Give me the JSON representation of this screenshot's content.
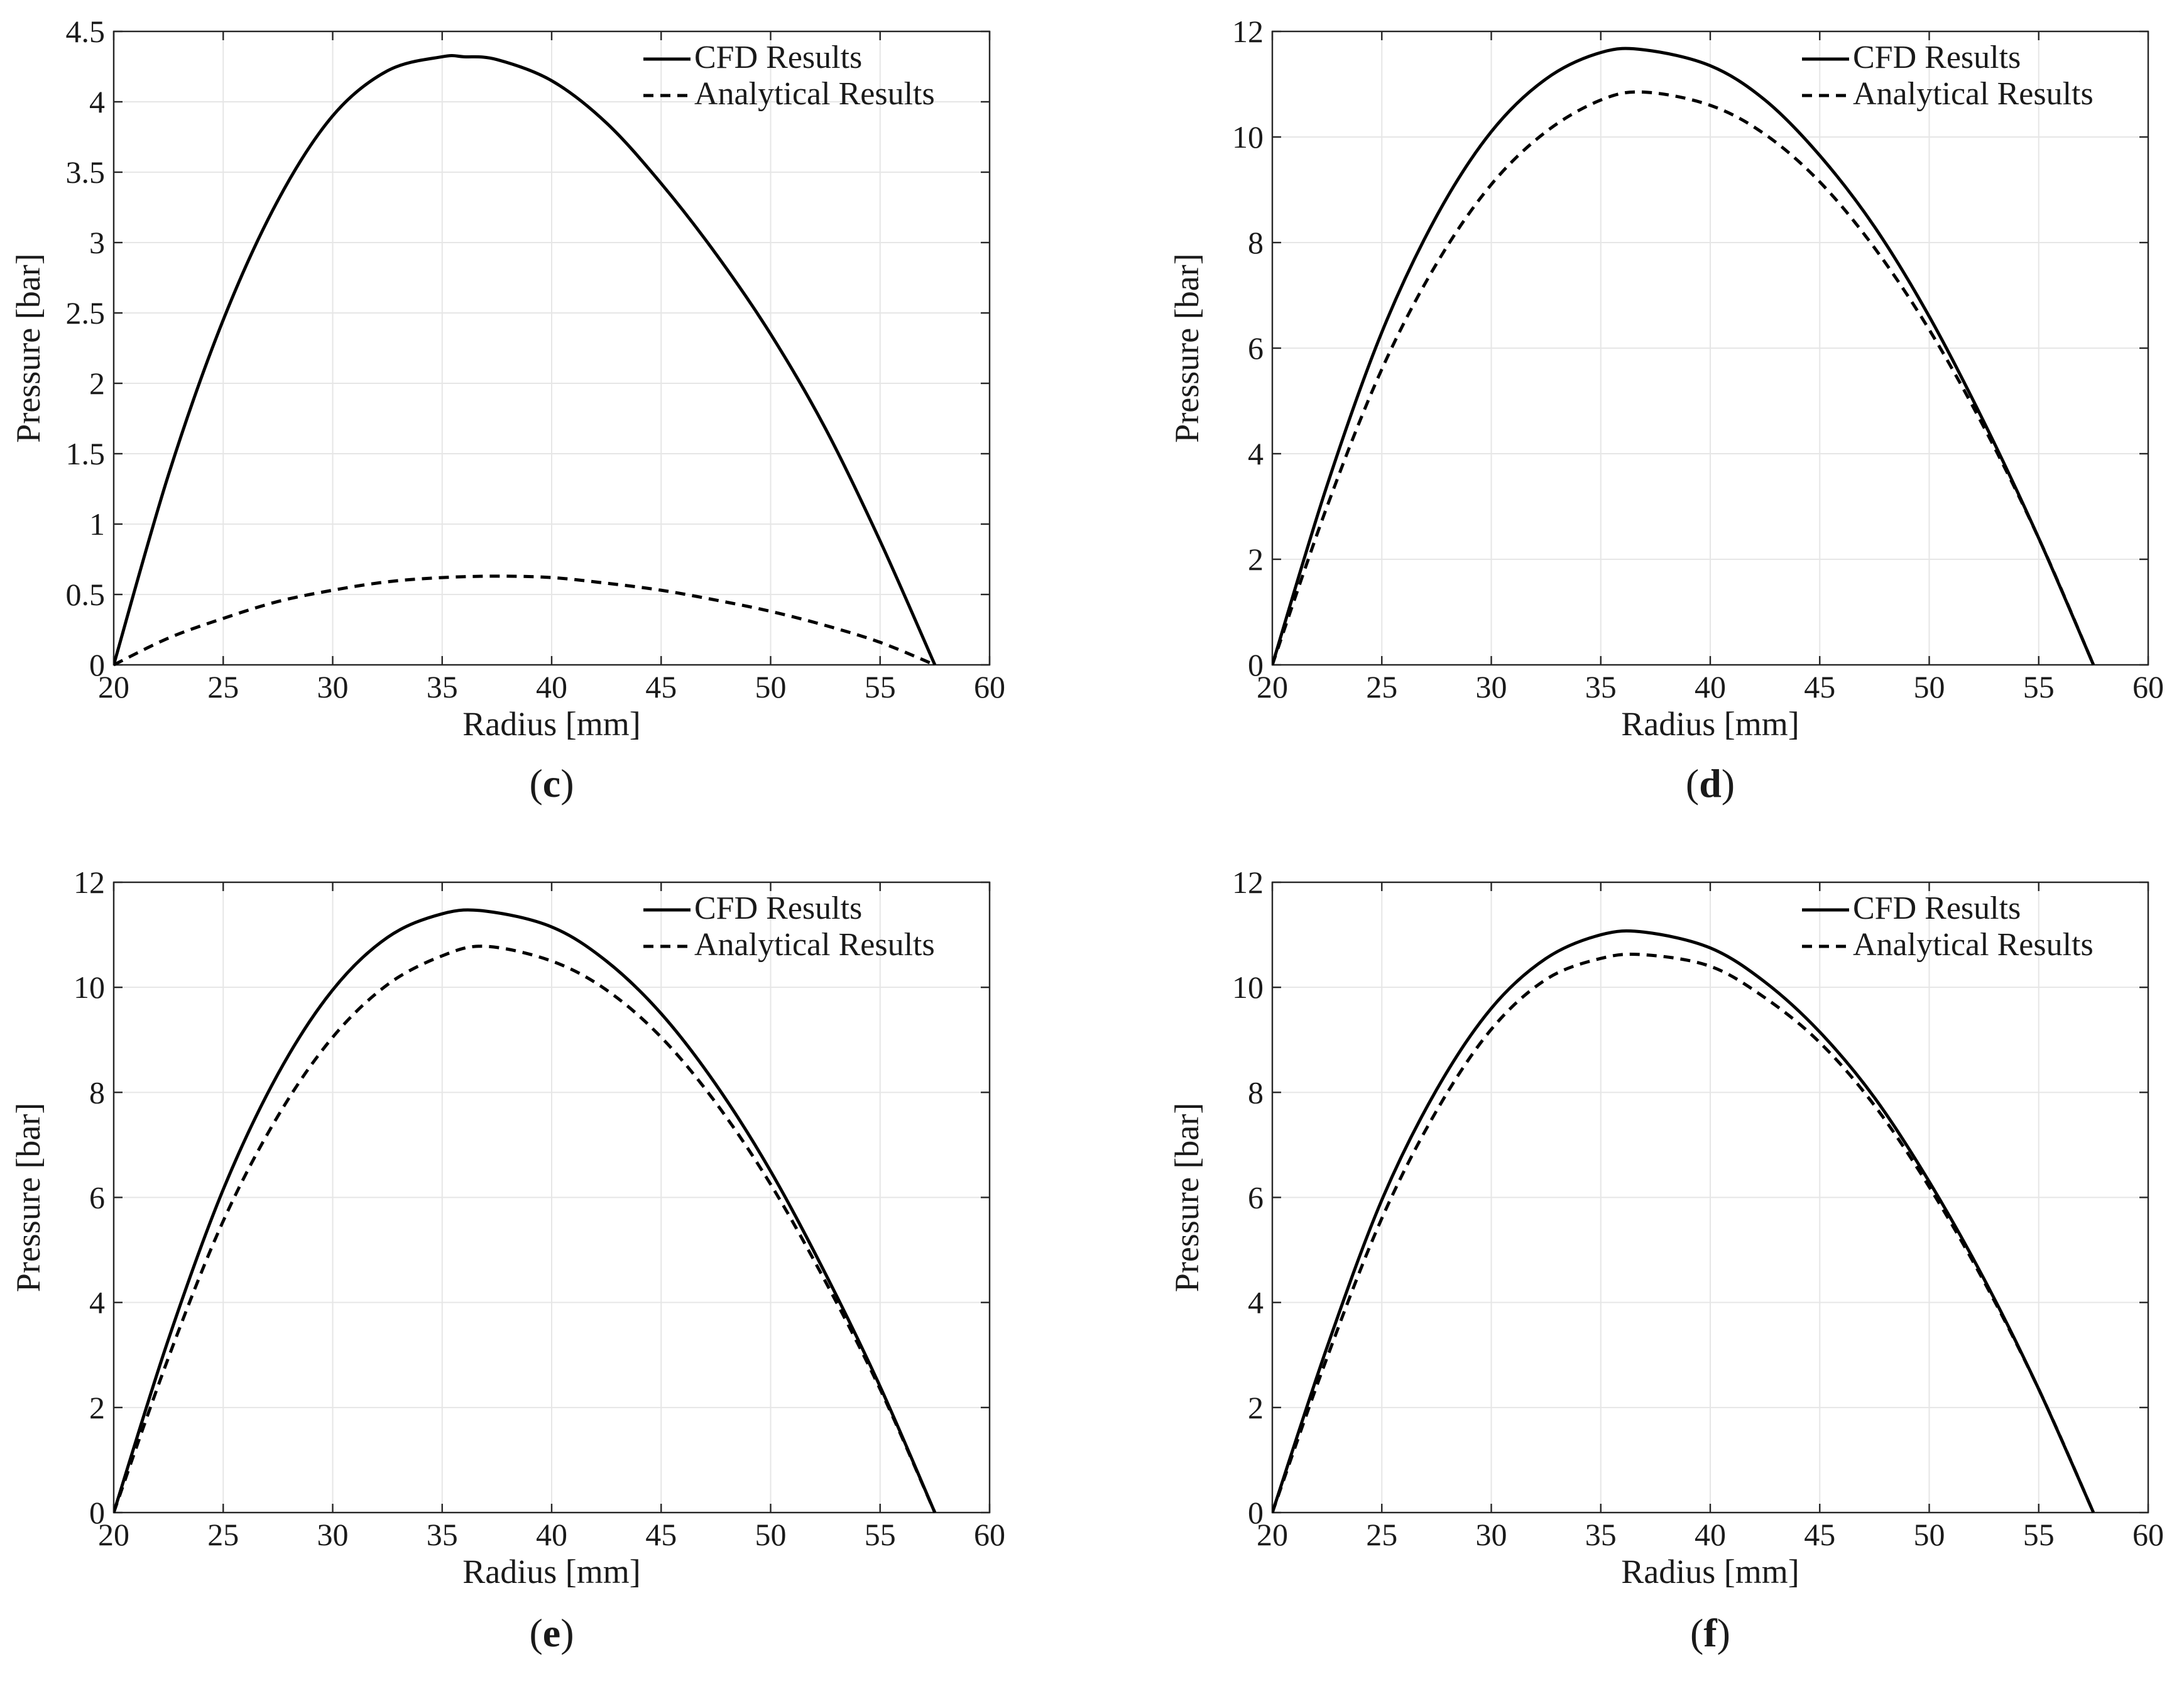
{
  "figure": {
    "panels": [
      "c",
      "d",
      "e",
      "f"
    ]
  },
  "chart_data": [
    {
      "id": "c",
      "type": "line",
      "caption_letter": "c",
      "xlabel": "Radius [mm]",
      "ylabel": "Pressure [bar]",
      "xlim": [
        20,
        60
      ],
      "ylim": [
        0,
        4.5
      ],
      "xticks": [
        20,
        25,
        30,
        35,
        40,
        45,
        50,
        55,
        60
      ],
      "yticks": [
        0,
        0.5,
        1,
        1.5,
        2,
        2.5,
        3,
        3.5,
        4,
        4.5
      ],
      "ytick_labels": [
        "0",
        "0.5",
        "1",
        "1.5",
        "2",
        "2.5",
        "3",
        "3.5",
        "4",
        "4.5"
      ],
      "grid": true,
      "legend": "top-right",
      "series": [
        {
          "name": "CFD Results",
          "style": "solid",
          "x": [
            20,
            22.5,
            25,
            27.5,
            30,
            32.5,
            35,
            36,
            37.5,
            40,
            42.5,
            45,
            47.5,
            50,
            52.5,
            55,
            57.5
          ],
          "y": [
            0,
            1.35,
            2.45,
            3.3,
            3.9,
            4.22,
            4.32,
            4.32,
            4.3,
            4.15,
            3.85,
            3.42,
            2.92,
            2.35,
            1.68,
            0.88,
            0
          ]
        },
        {
          "name": "Analytical Results",
          "style": "dashed",
          "x": [
            20,
            22.5,
            25,
            27.5,
            30,
            32.5,
            35,
            37.5,
            40,
            42.5,
            45,
            47.5,
            50,
            52.5,
            55,
            57.5
          ],
          "y": [
            0,
            0.19,
            0.33,
            0.45,
            0.53,
            0.59,
            0.62,
            0.63,
            0.62,
            0.58,
            0.53,
            0.46,
            0.38,
            0.28,
            0.16,
            0
          ]
        }
      ]
    },
    {
      "id": "d",
      "type": "line",
      "caption_letter": "d",
      "xlabel": "Radius [mm]",
      "ylabel": "Pressure [bar]",
      "xlim": [
        20,
        60
      ],
      "ylim": [
        0,
        12
      ],
      "xticks": [
        20,
        25,
        30,
        35,
        40,
        45,
        50,
        55,
        60
      ],
      "yticks": [
        0,
        2,
        4,
        6,
        8,
        10,
        12
      ],
      "ytick_labels": [
        "0",
        "2",
        "4",
        "6",
        "8",
        "10",
        "12"
      ],
      "grid": true,
      "legend": "top-right",
      "series": [
        {
          "name": "CFD Results",
          "style": "solid",
          "x": [
            20,
            22.5,
            25,
            27.5,
            30,
            32.5,
            35,
            37,
            40,
            42.5,
            45,
            47.5,
            50,
            52.5,
            55,
            57.5
          ],
          "y": [
            0,
            3.4,
            6.3,
            8.5,
            10.1,
            11.1,
            11.6,
            11.65,
            11.35,
            10.7,
            9.65,
            8.3,
            6.6,
            4.6,
            2.4,
            0
          ]
        },
        {
          "name": "Analytical Results",
          "style": "dashed",
          "x": [
            20,
            22.5,
            25,
            27.5,
            30,
            32.5,
            35,
            37,
            40,
            42.5,
            45,
            47.5,
            50,
            52.5,
            55,
            57.5
          ],
          "y": [
            0,
            3.0,
            5.6,
            7.6,
            9.1,
            10.1,
            10.7,
            10.85,
            10.6,
            10.05,
            9.15,
            7.9,
            6.35,
            4.5,
            2.4,
            0
          ]
        }
      ]
    },
    {
      "id": "e",
      "type": "line",
      "caption_letter": "e",
      "xlabel": "Radius [mm]",
      "ylabel": "Pressure [bar]",
      "xlim": [
        20,
        60
      ],
      "ylim": [
        0,
        12
      ],
      "xticks": [
        20,
        25,
        30,
        35,
        40,
        45,
        50,
        55,
        60
      ],
      "yticks": [
        0,
        2,
        4,
        6,
        8,
        10,
        12
      ],
      "ytick_labels": [
        "0",
        "2",
        "4",
        "6",
        "8",
        "10",
        "12"
      ],
      "grid": true,
      "legend": "top-right",
      "series": [
        {
          "name": "CFD Results",
          "style": "solid",
          "x": [
            20,
            22.5,
            25,
            27.5,
            30,
            32.5,
            35,
            37,
            40,
            42.5,
            45,
            47.5,
            50,
            52.5,
            55,
            57.5
          ],
          "y": [
            0,
            3.3,
            6.15,
            8.35,
            9.95,
            10.95,
            11.4,
            11.45,
            11.15,
            10.5,
            9.5,
            8.15,
            6.5,
            4.55,
            2.4,
            0
          ]
        },
        {
          "name": "Analytical Results",
          "style": "dashed",
          "x": [
            20,
            22.5,
            25,
            27.5,
            30,
            32.5,
            35,
            37,
            40,
            42.5,
            45,
            47.5,
            50,
            52.5,
            55,
            57.5
          ],
          "y": [
            0,
            2.95,
            5.55,
            7.55,
            9.05,
            10.05,
            10.6,
            10.78,
            10.5,
            9.95,
            9.05,
            7.8,
            6.25,
            4.4,
            2.35,
            0
          ]
        }
      ]
    },
    {
      "id": "f",
      "type": "line",
      "caption_letter": "f",
      "xlabel": "Radius [mm]",
      "ylabel": "Pressure [bar]",
      "xlim": [
        20,
        60
      ],
      "ylim": [
        0,
        12
      ],
      "xticks": [
        20,
        25,
        30,
        35,
        40,
        45,
        50,
        55,
        60
      ],
      "yticks": [
        0,
        2,
        4,
        6,
        8,
        10,
        12
      ],
      "ytick_labels": [
        "0",
        "2",
        "4",
        "6",
        "8",
        "10",
        "12"
      ],
      "grid": true,
      "legend": "top-right",
      "series": [
        {
          "name": "CFD Results",
          "style": "solid",
          "x": [
            20,
            22.5,
            25,
            27.5,
            30,
            32.5,
            35,
            37,
            40,
            42.5,
            45,
            47.5,
            50,
            52.5,
            55,
            57.5
          ],
          "y": [
            0,
            3.15,
            5.95,
            8.05,
            9.6,
            10.55,
            11.0,
            11.05,
            10.75,
            10.1,
            9.15,
            7.9,
            6.3,
            4.45,
            2.35,
            0
          ]
        },
        {
          "name": "Analytical Results",
          "style": "dashed",
          "x": [
            20,
            22.5,
            25,
            27.5,
            30,
            32.5,
            35,
            37,
            40,
            42.5,
            45,
            47.5,
            50,
            52.5,
            55,
            57.5
          ],
          "y": [
            0,
            2.95,
            5.6,
            7.65,
            9.2,
            10.15,
            10.55,
            10.62,
            10.4,
            9.8,
            8.95,
            7.75,
            6.2,
            4.4,
            2.35,
            0
          ]
        }
      ]
    }
  ]
}
